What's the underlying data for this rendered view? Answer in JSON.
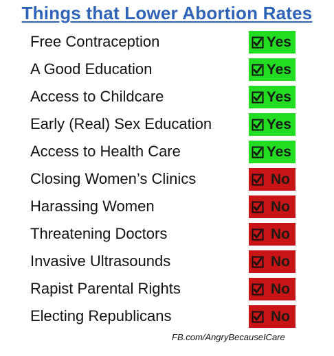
{
  "title": "Things that Lower Abortion Rates",
  "rows": [
    {
      "label": "Free Contraception",
      "answer": "Yes"
    },
    {
      "label": "A Good Education",
      "answer": "Yes"
    },
    {
      "label": "Access to Childcare",
      "answer": "Yes"
    },
    {
      "label": "Early (Real) Sex Education",
      "answer": "Yes"
    },
    {
      "label": "Access to Health Care",
      "answer": "Yes"
    },
    {
      "label": "Closing Women’s Clinics",
      "answer": "No"
    },
    {
      "label": "Harassing Women",
      "answer": "No"
    },
    {
      "label": "Threatening Doctors",
      "answer": "No"
    },
    {
      "label": "Invasive Ultrasounds",
      "answer": "No"
    },
    {
      "label": "Rapist Parental Rights",
      "answer": "No"
    },
    {
      "label": "Electing Republicans",
      "answer": "No"
    }
  ],
  "footer": "FB.com/AngryBecauseICare",
  "colors": {
    "title": "#2f63b6",
    "yes": "#22dd22",
    "no": "#c81414"
  },
  "icons": {
    "badge": "checked-box-icon"
  }
}
